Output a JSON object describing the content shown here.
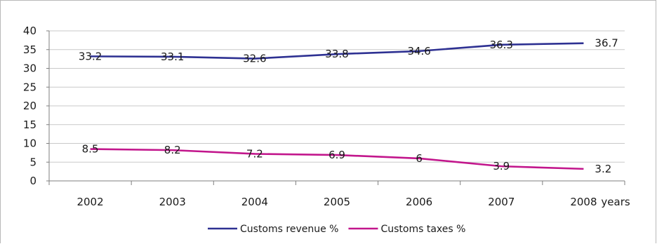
{
  "chart_data": {
    "type": "line",
    "categories": [
      "2002",
      "2003",
      "2004",
      "2005",
      "2006",
      "2007",
      "2008"
    ],
    "xlabel": "years",
    "ylim": [
      0,
      40
    ],
    "yticks": [
      "0",
      "5",
      "10",
      "15",
      "20",
      "25",
      "30",
      "35",
      "40"
    ],
    "grid": true,
    "legend_position": "bottom",
    "series": [
      {
        "name": "Customs revenue %",
        "color": "#2e3192",
        "values": [
          33.2,
          33.1,
          32.6,
          33.8,
          34.6,
          36.3,
          36.7
        ],
        "labels": [
          "33.2",
          "33.1",
          "32.6",
          "33.8",
          "34.6",
          "36.3",
          "36.7"
        ]
      },
      {
        "name": "Customs taxes %",
        "color": "#c2168c",
        "values": [
          8.5,
          8.2,
          7.2,
          6.9,
          6,
          3.9,
          3.2
        ],
        "labels": [
          "8.5",
          "8.2",
          "7.2",
          "6.9",
          "6",
          "3.9",
          "3.2"
        ]
      }
    ]
  }
}
